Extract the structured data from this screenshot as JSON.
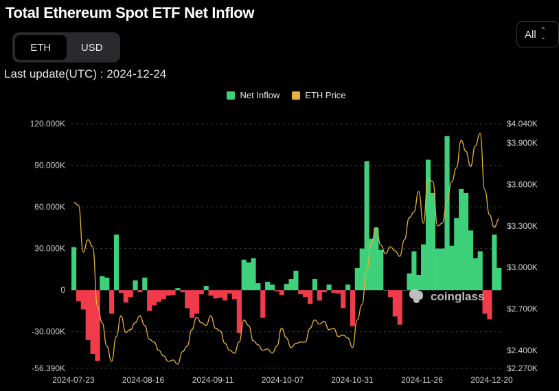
{
  "header": {
    "title": "Total Ethereum Spot ETF Net Inflow"
  },
  "toggle": {
    "options": [
      "ETH",
      "USD"
    ],
    "active": "ETH"
  },
  "range_select": {
    "value": "All",
    "caret": "⌃\n⌄"
  },
  "last_update": "Last update(UTC) : 2024-12-24",
  "watermark": "coinglass",
  "colors": {
    "inflow_pos": "#3ed07a",
    "inflow_neg": "#f23b4a",
    "price": "#e8b23a",
    "grid": "#3a3a3a"
  },
  "chart_data": {
    "type": "bar",
    "legend": [
      {
        "name": "Net Inflow",
        "color": "#3ed07a"
      },
      {
        "name": "ETH Price",
        "color": "#e8b23a"
      }
    ],
    "x_ticks": [
      "2024-07-23",
      "2024-08-16",
      "2024-09-11",
      "2024-10-07",
      "2024-10-31",
      "2024-11-26",
      "2024-12-20"
    ],
    "y_left": {
      "ticks": [
        120000,
        90000,
        60000,
        30000,
        0,
        -30000,
        -56390
      ],
      "tick_labels": [
        "120.000K",
        "90.000K",
        "60.000K",
        "30.000K",
        "0",
        "-30.000K",
        "-56.390K"
      ],
      "range": [
        -56390,
        120000
      ]
    },
    "y_right": {
      "ticks": [
        4040,
        3900,
        3600,
        3300,
        3000,
        2700,
        2400,
        2270
      ],
      "tick_labels": [
        "$4.040K",
        "$3.900K",
        "$3.600K",
        "$3.300K",
        "$3.000K",
        "$2.700K",
        "$2.400K",
        "$2.270K"
      ],
      "range": [
        2270,
        4040
      ]
    },
    "series": [
      {
        "name": "Net Inflow",
        "values": [
          31000,
          -8000,
          -14000,
          -36000,
          -46000,
          -51000,
          10000,
          9000,
          -17000,
          40000,
          -2000,
          -9000,
          -5000,
          7000,
          -1500,
          9000,
          -15000,
          -11000,
          -8500,
          -6500,
          -4000,
          -3500,
          1500,
          -1500,
          -13000,
          -20000,
          -17000,
          -3000,
          3000,
          -4000,
          -6000,
          -5500,
          -7500,
          -2500,
          -6500,
          -31000,
          22000,
          20000,
          23000,
          5000,
          -20000,
          6000,
          4000,
          -1000,
          -3500,
          4500,
          8000,
          14000,
          -3000,
          -5000,
          -10000,
          8000,
          -7500,
          -1500,
          4000,
          -2000,
          -2500,
          -13000,
          4000,
          -26000,
          16000,
          30000,
          93000,
          37000,
          45000,
          29000,
          0,
          -5000,
          -19000,
          -25000,
          0,
          12000,
          28000,
          11000,
          33000,
          94000,
          70000,
          30000,
          30000,
          111000,
          32000,
          52000,
          73000,
          70000,
          43000,
          23000,
          28000,
          -17000,
          -21000,
          40000,
          16000
        ]
      },
      {
        "name": "ETH Price",
        "values": [
          3470,
          3450,
          3110,
          3200,
          3150,
          2720,
          2600,
          2430,
          2320,
          2500,
          2650,
          2530,
          2550,
          2600,
          2650,
          2580,
          2480,
          2460,
          2400,
          2360,
          2320,
          2330,
          2300,
          2390,
          2430,
          2550,
          2640,
          2600,
          2580,
          2650,
          2560,
          2540,
          2450,
          2400,
          2380,
          2460,
          2620,
          2580,
          2470,
          2440,
          2400,
          2410,
          2380,
          2430,
          2560,
          2490,
          2420,
          2450,
          2460,
          2460,
          2560,
          2620,
          2590,
          2610,
          2550,
          2560,
          2500,
          2510,
          2490,
          2420,
          2620,
          2730,
          2980,
          3180,
          3290,
          3160,
          3100,
          3150,
          3120,
          3080,
          3200,
          3360,
          3400,
          3550,
          3320,
          3640,
          3620,
          3300,
          3320,
          3480,
          3620,
          3720,
          3920,
          3840,
          3730,
          3880,
          3970,
          3560,
          3380,
          3290,
          3350
        ]
      }
    ]
  }
}
